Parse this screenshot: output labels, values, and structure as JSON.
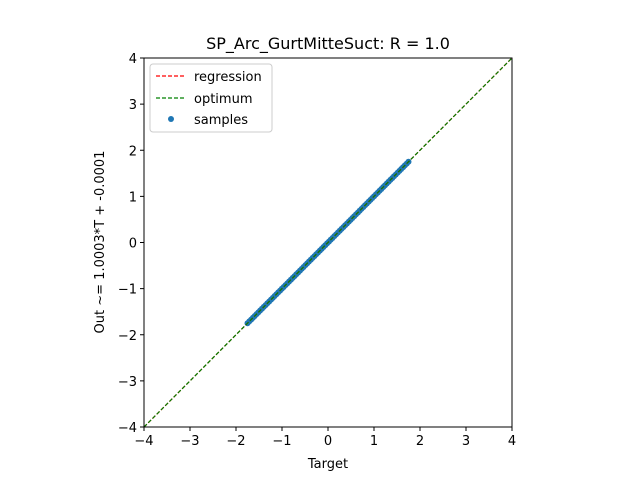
{
  "chart_data": {
    "type": "scatter",
    "title": "SP_Arc_GurtMitteSuct: R = 1.0",
    "xlabel": "Target",
    "ylabel": "Out ~= 1.0003*T + -0.0001",
    "xlim": [
      -4,
      4
    ],
    "ylim": [
      -4,
      4
    ],
    "xticks": [
      -4,
      -3,
      -2,
      -1,
      0,
      1,
      2,
      3,
      4
    ],
    "yticks": [
      -4,
      -3,
      -2,
      -1,
      0,
      1,
      2,
      3,
      4
    ],
    "xtick_labels": [
      "−4",
      "−3",
      "−2",
      "−1",
      "0",
      "1",
      "2",
      "3",
      "4"
    ],
    "ytick_labels": [
      "−4",
      "−3",
      "−2",
      "−1",
      "0",
      "1",
      "2",
      "3",
      "4"
    ],
    "grid": false,
    "legend_position": "top-left",
    "series": [
      {
        "name": "regression",
        "kind": "line",
        "style": "dashed",
        "color": "#ff0000",
        "slope": 1.0003,
        "intercept": -0.0001
      },
      {
        "name": "optimum",
        "kind": "line",
        "style": "dashed",
        "color": "#008000",
        "slope": 1.0,
        "intercept": 0.0
      },
      {
        "name": "samples",
        "kind": "scatter",
        "color": "#1f77b4",
        "x_range": [
          -1.75,
          1.75
        ],
        "slope": 1.0003,
        "intercept": -0.0001
      }
    ]
  }
}
